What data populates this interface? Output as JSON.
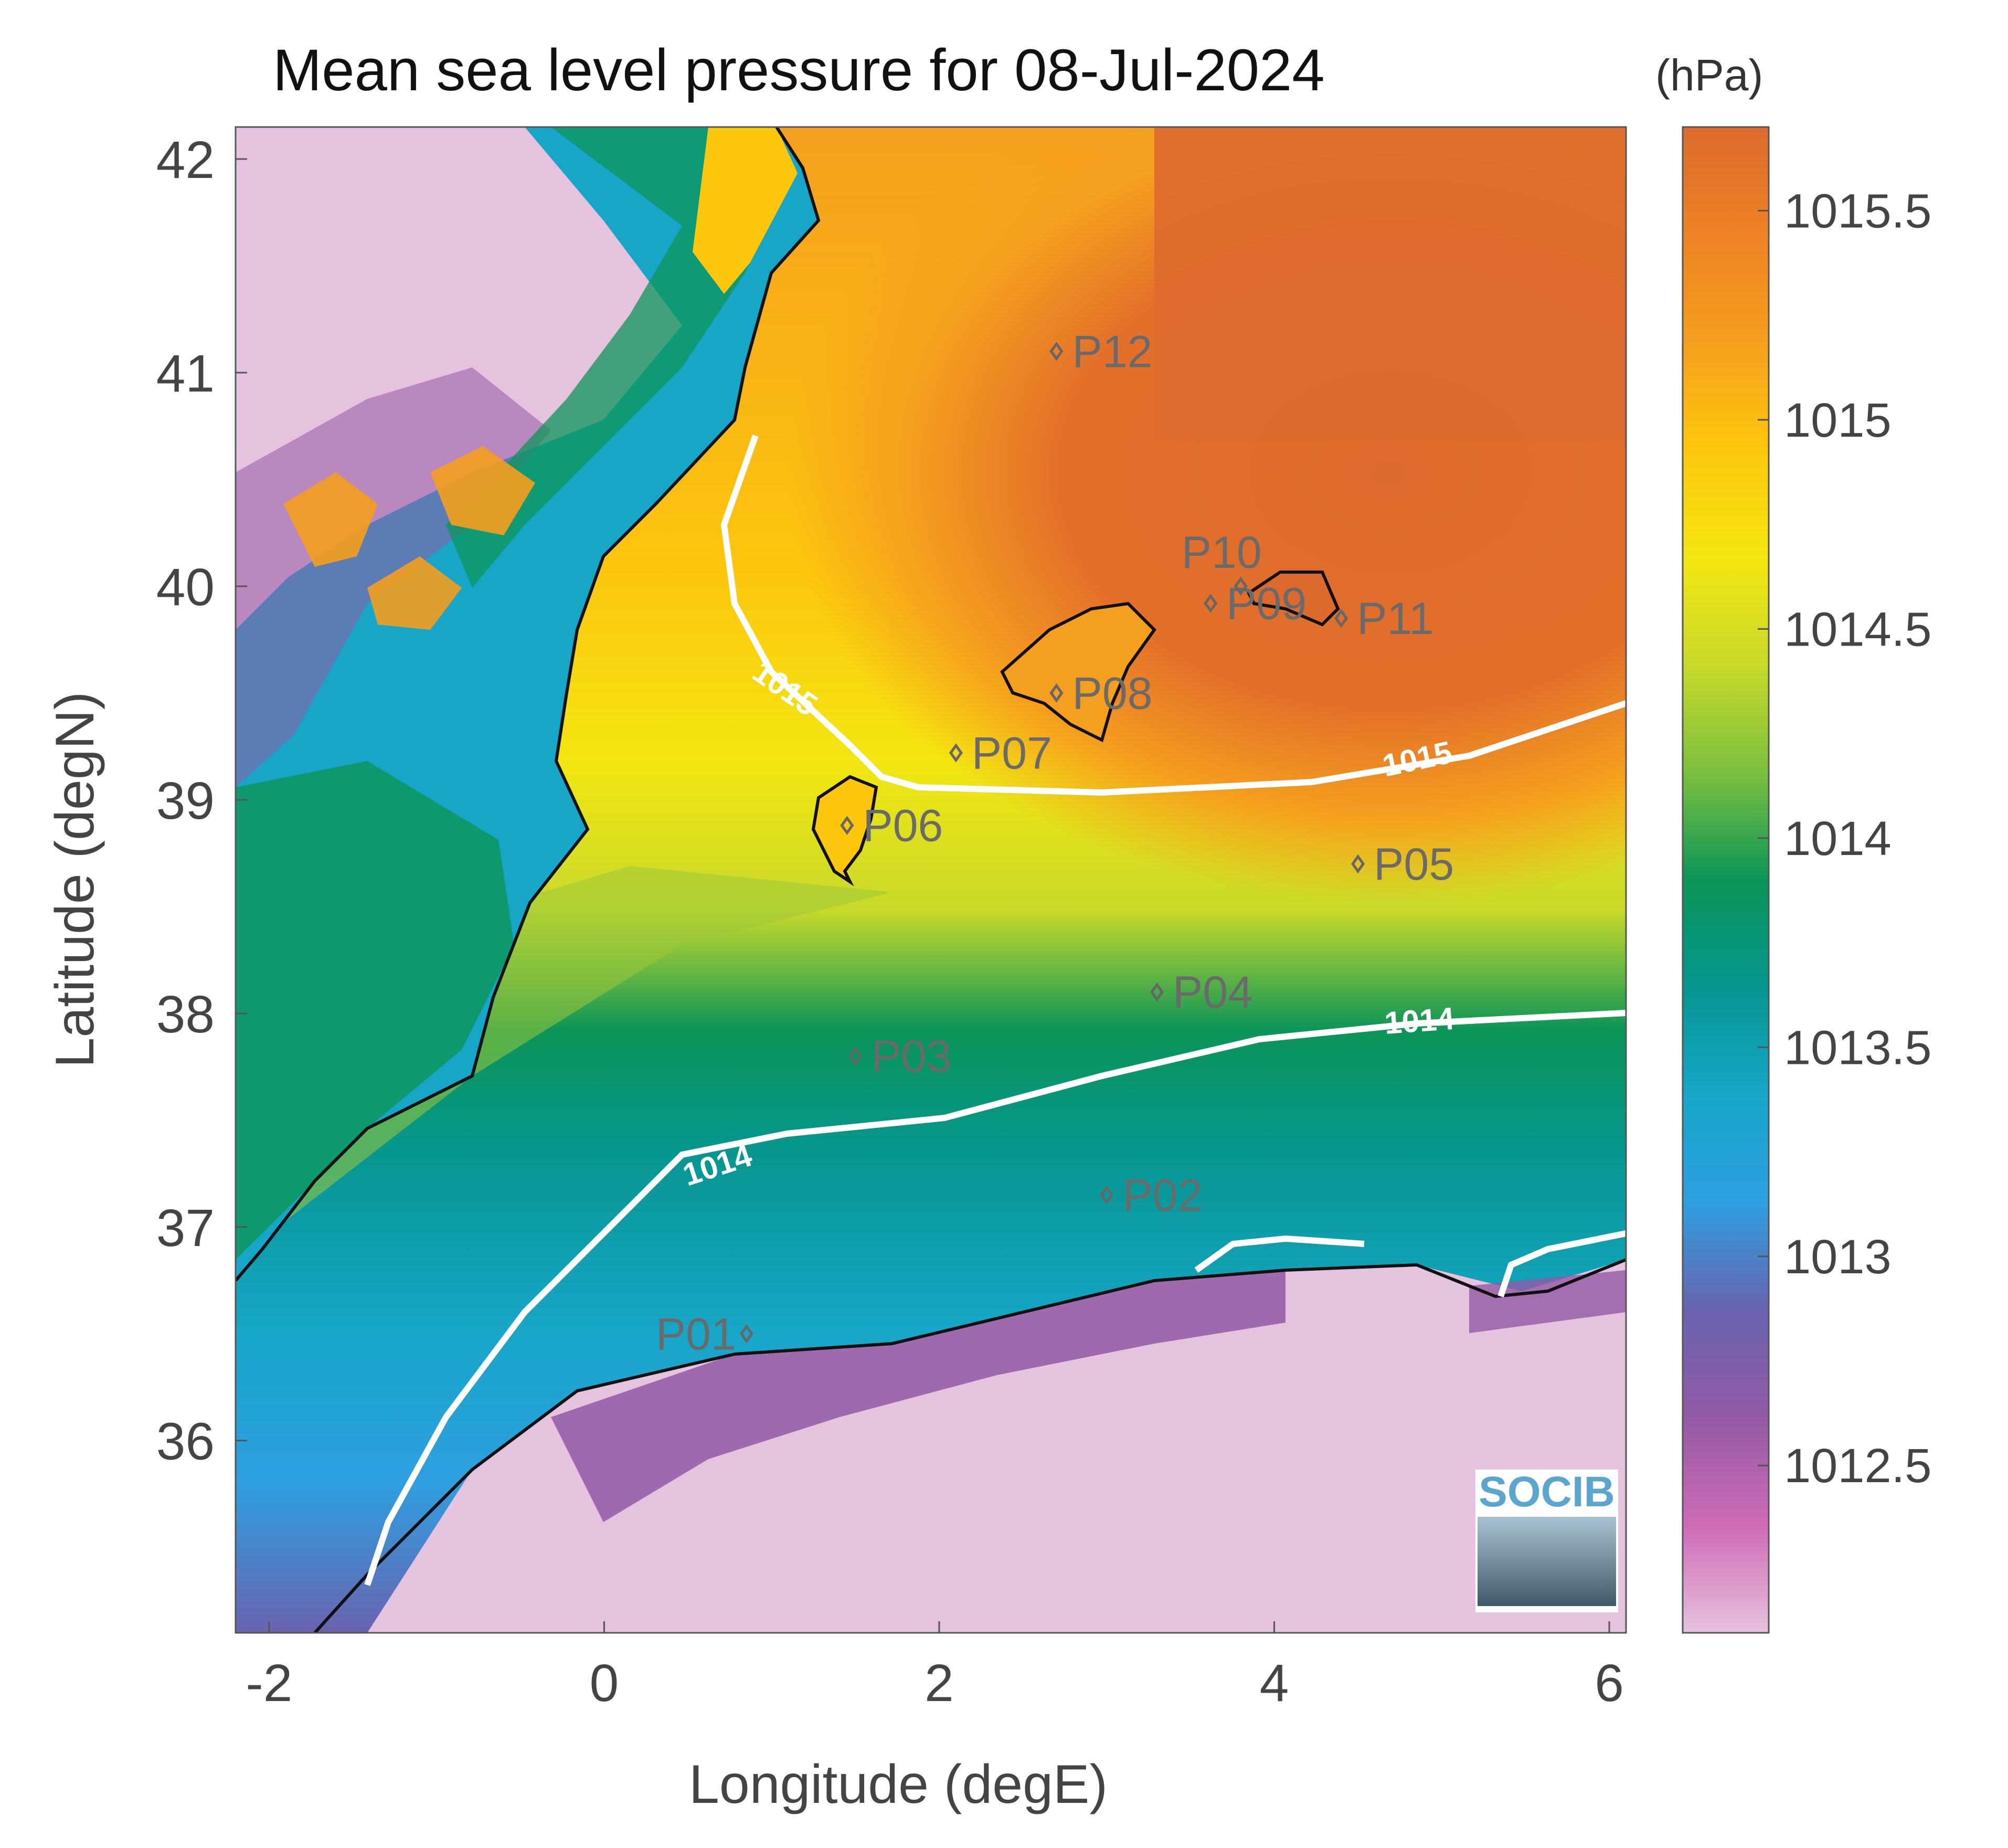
{
  "title": "Mean sea level pressure for 08-Jul-2024",
  "colorbar": {
    "unit_label": "(hPa)",
    "ticks": [
      "1012.5",
      "1013",
      "1013.5",
      "1014",
      "1014.5",
      "1015",
      "1015.5"
    ],
    "range": [
      1012.1,
      1015.7
    ],
    "colormap": [
      "#e5c2dd",
      "#cf6bb6",
      "#935aa5",
      "#6a63af",
      "#2e9fe0",
      "#17a6c8",
      "#06968f",
      "#0b9558",
      "#7cbf3f",
      "#c8d92a",
      "#f3e611",
      "#fcc70d",
      "#f59f1e",
      "#ee8225",
      "#dd6a2d"
    ]
  },
  "axes": {
    "xlabel": "Longitude (degE)",
    "ylabel": "Latitude (degN)",
    "xticks": [
      "-2",
      "0",
      "2",
      "4",
      "6"
    ],
    "yticks": [
      "36",
      "37",
      "38",
      "39",
      "40",
      "41",
      "42"
    ],
    "xlim": [
      -2.2,
      6.1
    ],
    "ylim": [
      35.1,
      42.15
    ]
  },
  "contours": [
    {
      "level": "1015",
      "labels": [
        "1015",
        "1015"
      ]
    },
    {
      "level": "1014",
      "labels": [
        "1014",
        "1014"
      ]
    }
  ],
  "stations": [
    {
      "name": "P01",
      "lon": 0.85,
      "lat": 36.5
    },
    {
      "name": "P02",
      "lon": 3.0,
      "lat": 37.15
    },
    {
      "name": "P03",
      "lon": 1.5,
      "lat": 37.8
    },
    {
      "name": "P04",
      "lon": 3.3,
      "lat": 38.1
    },
    {
      "name": "P05",
      "lon": 4.5,
      "lat": 38.7
    },
    {
      "name": "P06",
      "lon": 1.45,
      "lat": 38.88
    },
    {
      "name": "P07",
      "lon": 2.1,
      "lat": 39.22
    },
    {
      "name": "P08",
      "lon": 2.7,
      "lat": 39.5
    },
    {
      "name": "P09",
      "lon": 3.62,
      "lat": 39.92
    },
    {
      "name": "P10",
      "lon": 3.8,
      "lat": 40.0
    },
    {
      "name": "P11",
      "lon": 4.4,
      "lat": 39.85
    },
    {
      "name": "P12",
      "lon": 2.7,
      "lat": 41.1
    }
  ],
  "logo": {
    "text": "SOCIB"
  }
}
